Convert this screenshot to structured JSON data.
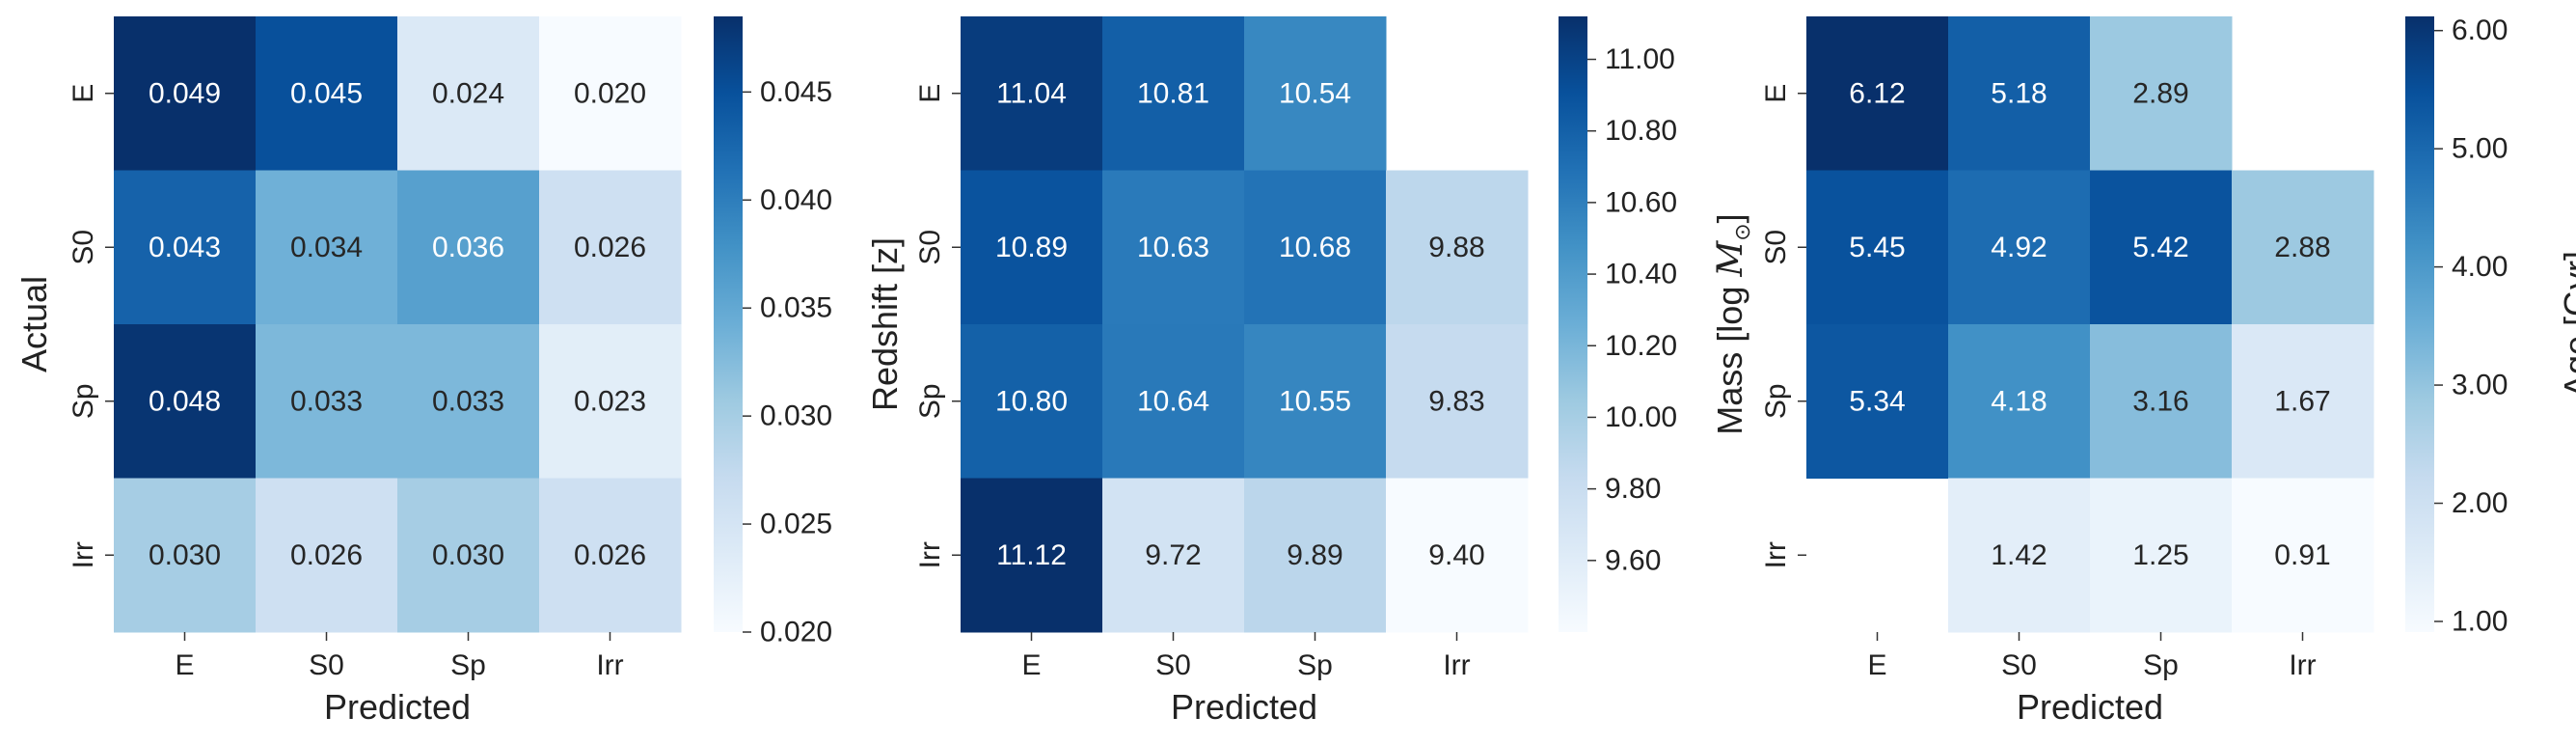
{
  "chart_data": [
    {
      "type": "heatmap",
      "x_categories": [
        "E",
        "S0",
        "Sp",
        "Irr"
      ],
      "y_categories": [
        "E",
        "S0",
        "Sp",
        "Irr"
      ],
      "xlabel": "Predicted",
      "ylabel": "Actual",
      "colorbar_label": "Redshift [z]",
      "values": [
        [
          0.049,
          0.045,
          0.024,
          0.02
        ],
        [
          0.043,
          0.034,
          0.036,
          0.026
        ],
        [
          0.048,
          0.033,
          0.033,
          0.023
        ],
        [
          0.03,
          0.026,
          0.03,
          0.026
        ]
      ],
      "cell_labels": [
        [
          "0.049",
          "0.045",
          "0.024",
          "0.020"
        ],
        [
          "0.043",
          "0.034",
          "0.036",
          "0.026"
        ],
        [
          "0.048",
          "0.033",
          "0.033",
          "0.023"
        ],
        [
          "0.030",
          "0.026",
          "0.030",
          "0.026"
        ]
      ],
      "vmin": 0.02,
      "vmax": 0.0485,
      "colorbar_ticks": [
        0.02,
        0.025,
        0.03,
        0.035,
        0.04,
        0.045
      ],
      "colorbar_tick_labels": [
        "0.020",
        "0.025",
        "0.030",
        "0.035",
        "0.040",
        "0.045"
      ],
      "colormap": "Blues"
    },
    {
      "type": "heatmap",
      "x_categories": [
        "E",
        "S0",
        "Sp",
        "Irr"
      ],
      "y_categories": [
        "E",
        "S0",
        "Sp",
        "Irr"
      ],
      "xlabel": "Predicted",
      "ylabel": "",
      "colorbar_label": "Mass [log M⊙]",
      "colorbar_label_parts": [
        "Mass [log ",
        "M",
        "⊙",
        "]"
      ],
      "values": [
        [
          11.04,
          10.81,
          10.54,
          null
        ],
        [
          10.89,
          10.63,
          10.68,
          9.88
        ],
        [
          10.8,
          10.64,
          10.55,
          9.83
        ],
        [
          11.12,
          9.72,
          9.89,
          9.4
        ]
      ],
      "cell_labels": [
        [
          "11.04",
          "10.81",
          "10.54",
          ""
        ],
        [
          "10.89",
          "10.63",
          "10.68",
          "9.88"
        ],
        [
          "10.80",
          "10.64",
          "10.55",
          "9.83"
        ],
        [
          "11.12",
          "9.72",
          "9.89",
          "9.40"
        ]
      ],
      "vmin": 9.4,
      "vmax": 11.12,
      "colorbar_ticks": [
        9.6,
        9.8,
        10.0,
        10.2,
        10.4,
        10.6,
        10.8,
        11.0
      ],
      "colorbar_tick_labels": [
        "9.60",
        "9.80",
        "10.00",
        "10.20",
        "10.40",
        "10.60",
        "10.80",
        "11.00"
      ],
      "colormap": "Blues"
    },
    {
      "type": "heatmap",
      "x_categories": [
        "E",
        "S0",
        "Sp",
        "Irr"
      ],
      "y_categories": [
        "E",
        "S0",
        "Sp",
        "Irr"
      ],
      "xlabel": "Predicted",
      "ylabel": "",
      "colorbar_label": "Age [Gyr]",
      "values": [
        [
          6.12,
          5.18,
          2.89,
          null
        ],
        [
          5.45,
          4.92,
          5.42,
          2.88
        ],
        [
          5.34,
          4.18,
          3.16,
          1.67
        ],
        [
          null,
          1.42,
          1.25,
          0.91
        ]
      ],
      "cell_labels": [
        [
          "6.12",
          "5.18",
          "2.89",
          ""
        ],
        [
          "5.45",
          "4.92",
          "5.42",
          "2.88"
        ],
        [
          "5.34",
          "4.18",
          "3.16",
          "1.67"
        ],
        [
          "",
          "1.42",
          "1.25",
          "0.91"
        ]
      ],
      "vmin": 0.91,
      "vmax": 6.12,
      "colorbar_ticks": [
        1.0,
        2.0,
        3.0,
        4.0,
        5.0,
        6.0
      ],
      "colorbar_tick_labels": [
        "1.00",
        "2.00",
        "3.00",
        "4.00",
        "5.00",
        "6.00"
      ],
      "colormap": "Blues"
    }
  ]
}
